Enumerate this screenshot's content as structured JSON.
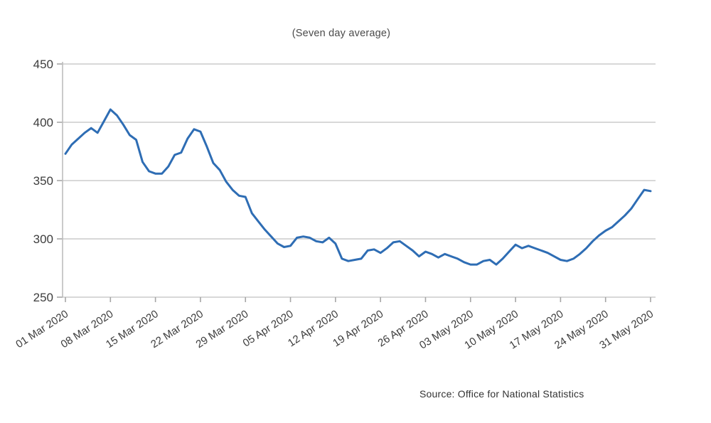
{
  "colors": {
    "line": "#2e6db4",
    "grid": "#cccccc",
    "axis": "#bdbdbd",
    "tick": "#a6a6a6",
    "text": "#3d3d3d",
    "background": "#ffffff"
  },
  "chart_data": {
    "type": "line",
    "title": "(Seven day average)",
    "source": "Source: Office for National Statistics",
    "legend": "none",
    "grid": "horizontal",
    "ylim": [
      250,
      450
    ],
    "y_ticks": [
      250,
      300,
      350,
      400,
      450
    ],
    "x_start_date": "01 Mar 2020",
    "x_end_date": "31 May 2020",
    "x_tick_labels": [
      "01 Mar 2020",
      "08 Mar 2020",
      "15 Mar 2020",
      "22 Mar 2020",
      "29 Mar 2020",
      "05 Apr 2020",
      "12 Apr 2020",
      "19 Apr 2020",
      "26 Apr 2020",
      "03 May 2020",
      "10 May 2020",
      "17 May 2020",
      "24 May 2020",
      "31 May 2020"
    ],
    "x_tick_day_index": [
      0,
      7,
      14,
      21,
      28,
      35,
      42,
      49,
      56,
      63,
      70,
      77,
      84,
      91
    ],
    "series": [
      {
        "name": "Seven day average",
        "values": [
          373,
          381,
          386,
          391,
          395,
          391,
          401,
          411,
          406,
          398,
          389,
          385,
          366,
          358,
          356,
          356,
          362,
          372,
          374,
          386,
          394,
          392,
          379,
          365,
          359,
          349,
          342,
          337,
          336,
          322,
          315,
          308,
          302,
          296,
          293,
          294,
          301,
          302,
          301,
          298,
          297,
          301,
          296,
          283,
          281,
          282,
          283,
          290,
          291,
          288,
          292,
          297,
          298,
          294,
          290,
          285,
          289,
          287,
          284,
          287,
          285,
          283,
          280,
          278,
          278,
          281,
          282,
          278,
          283,
          289,
          295,
          292,
          294,
          292,
          290,
          288,
          285,
          282,
          281,
          283,
          287,
          292,
          298,
          303,
          307,
          310,
          315,
          320,
          326,
          334,
          342,
          341
        ]
      }
    ]
  }
}
